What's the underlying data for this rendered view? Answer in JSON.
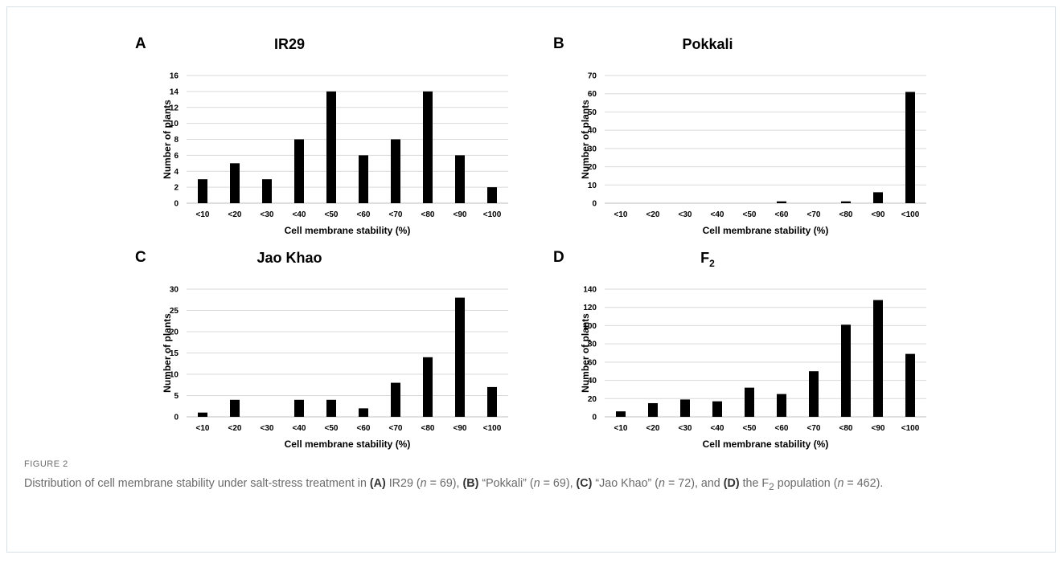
{
  "chart_data": [
    {
      "type": "bar",
      "panel_letter": "A",
      "title": "IR29",
      "categories": [
        "<10",
        "<20",
        "<30",
        "<40",
        "<50",
        "<60",
        "<70",
        "<80",
        "<90",
        "<100"
      ],
      "values": [
        3,
        5,
        3,
        8,
        14,
        6,
        8,
        14,
        6,
        2
      ],
      "xlabel": "Cell membrane stability (%)",
      "ylabel": "Number of plants",
      "ylim": [
        0,
        16
      ],
      "yticks": [
        0,
        2,
        4,
        6,
        8,
        10,
        12,
        14,
        16
      ],
      "grid": true,
      "bar_color": "#000000"
    },
    {
      "type": "bar",
      "panel_letter": "B",
      "title": "Pokkali",
      "categories": [
        "<10",
        "<20",
        "<30",
        "<40",
        "<50",
        "<60",
        "<70",
        "<80",
        "<90",
        "<100"
      ],
      "values": [
        0,
        0,
        0,
        0,
        0,
        1,
        0,
        1,
        6,
        61
      ],
      "xlabel": "Cell membrane stability (%)",
      "ylabel": "Number of plants",
      "ylim": [
        0,
        70
      ],
      "yticks": [
        0,
        10,
        20,
        30,
        40,
        50,
        60,
        70
      ],
      "grid": true,
      "bar_color": "#000000"
    },
    {
      "type": "bar",
      "panel_letter": "C",
      "title": "Jao Khao",
      "categories": [
        "<10",
        "<20",
        "<30",
        "<40",
        "<50",
        "<60",
        "<70",
        "<80",
        "<90",
        "<100"
      ],
      "values": [
        1,
        4,
        0,
        4,
        4,
        2,
        8,
        14,
        28,
        7
      ],
      "xlabel": "Cell membrane stability (%)",
      "ylabel": "Number of plants",
      "ylim": [
        0,
        30
      ],
      "yticks": [
        0,
        5,
        10,
        15,
        20,
        25,
        30
      ],
      "grid": true,
      "bar_color": "#000000"
    },
    {
      "type": "bar",
      "panel_letter": "D",
      "title": "F",
      "title_subscript": "2",
      "categories": [
        "<10",
        "<20",
        "<30",
        "<40",
        "<50",
        "<60",
        "<70",
        "<80",
        "<90",
        "<100"
      ],
      "values": [
        6,
        15,
        19,
        17,
        32,
        25,
        50,
        101,
        128,
        69
      ],
      "xlabel": "Cell membrane stability (%)",
      "ylabel": "Number of plants",
      "ylim": [
        0,
        140
      ],
      "yticks": [
        0,
        20,
        40,
        60,
        80,
        100,
        120,
        140
      ],
      "grid": true,
      "bar_color": "#000000"
    }
  ],
  "caption": {
    "figure_label": "FIGURE 2",
    "segments": [
      {
        "t": "Distribution of cell membrane stability under salt-stress treatment in ",
        "s": ""
      },
      {
        "t": "(A)",
        "s": "b"
      },
      {
        "t": " IR29 (",
        "s": ""
      },
      {
        "t": "n",
        "s": "i"
      },
      {
        "t": " = 69), ",
        "s": ""
      },
      {
        "t": "(B)",
        "s": "b"
      },
      {
        "t": " “Pokkali” (",
        "s": ""
      },
      {
        "t": "n",
        "s": "i"
      },
      {
        "t": " = 69), ",
        "s": ""
      },
      {
        "t": "(C)",
        "s": "b"
      },
      {
        "t": " “Jao Khao” (",
        "s": ""
      },
      {
        "t": "n",
        "s": "i"
      },
      {
        "t": " = 72), and ",
        "s": ""
      },
      {
        "t": "(D)",
        "s": "b"
      },
      {
        "t": " the F",
        "s": ""
      },
      {
        "t": "2",
        "s": "sub"
      },
      {
        "t": " population (",
        "s": ""
      },
      {
        "t": "n",
        "s": "i"
      },
      {
        "t": " = 462).",
        "s": ""
      }
    ]
  }
}
